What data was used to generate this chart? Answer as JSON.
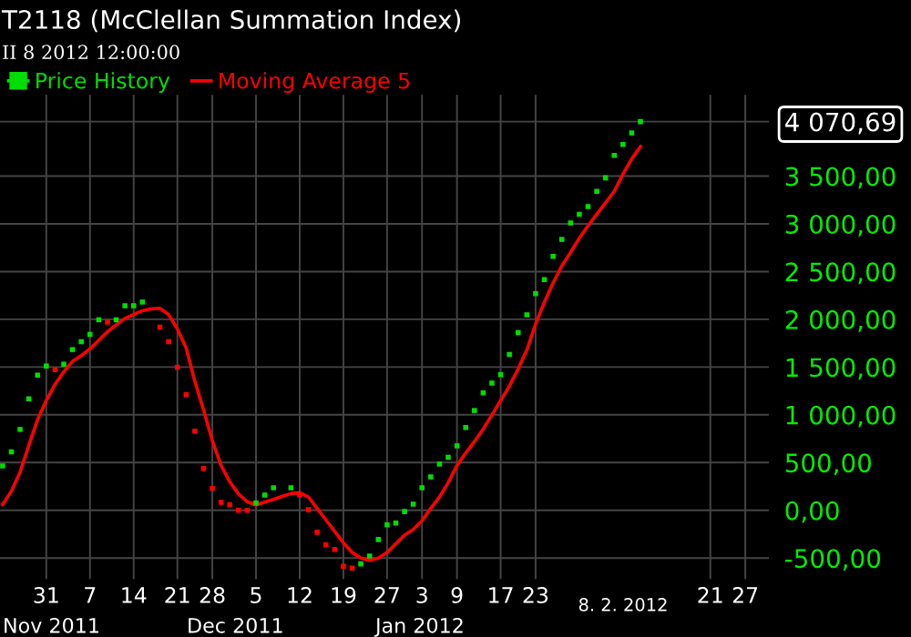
{
  "chart_data": {
    "type": "scatter",
    "title": "T2118 (McClellan Summation Index)",
    "subtitle": "II 8 2012 12:00:00",
    "annotations": [
      "Nov 2011",
      "Dec 2011",
      "Jan 2012",
      "8. 2. 2012"
    ],
    "categories": [
      null,
      null,
      null,
      null,
      null,
      "31",
      null,
      null,
      null,
      null,
      "7",
      null,
      null,
      null,
      null,
      "14",
      null,
      null,
      null,
      null,
      "21",
      null,
      null,
      null,
      "28",
      null,
      null,
      null,
      null,
      "5",
      null,
      null,
      null,
      null,
      "12",
      null,
      null,
      null,
      null,
      "19",
      null,
      null,
      null,
      null,
      "27",
      null,
      null,
      null,
      "3",
      null,
      null,
      null,
      "9",
      null,
      null,
      null,
      null,
      "17",
      null,
      null,
      null,
      "23",
      null,
      null,
      null,
      null,
      null,
      null,
      null,
      null,
      null,
      null,
      null,
      null,
      null,
      null,
      null,
      null,
      null,
      null,
      null,
      "21",
      null,
      null,
      null,
      "27",
      null,
      null
    ],
    "series": [
      {
        "name": "Price History",
        "color": "#00dd00",
        "marker": "square",
        "values": [
          465,
          612,
          847,
          1167,
          1415,
          1511,
          1473,
          1530,
          1683,
          1766,
          1842,
          1995,
          1970,
          1995,
          2142,
          2142,
          2181,
          null,
          1918,
          1766,
          1498,
          1211,
          828,
          439,
          229,
          83,
          57,
          0,
          0,
          77,
          159,
          235,
          null,
          235,
          159,
          6,
          -230,
          -363,
          -410,
          -587,
          -606,
          -561,
          -478,
          -306,
          -153,
          -134,
          -13,
          64,
          235,
          350,
          484,
          555,
          675,
          867,
          1045,
          1230,
          1332,
          1421,
          1632,
          1861,
          2047,
          2269,
          2416,
          2659,
          2837,
          3009,
          3099,
          3181,
          3340,
          3482,
          3717,
          3832,
          3952,
          4070.69,
          null,
          null,
          null,
          null,
          null,
          null,
          null,
          null,
          null,
          null,
          null,
          null,
          null,
          null
        ],
        "colors": [
          "#00dd00",
          "#00dd00",
          "#00dd00",
          "#00dd00",
          "#00dd00",
          "#00dd00",
          "#ff0000",
          "#00dd00",
          "#00dd00",
          "#00dd00",
          "#00dd00",
          "#00dd00",
          "#ff0000",
          "#00dd00",
          "#00dd00",
          "#00dd00",
          "#00dd00",
          "#ff0000",
          "#ff0000",
          "#ff0000",
          "#ff0000",
          "#ff0000",
          "#ff0000",
          "#ff0000",
          "#ff0000",
          "#ff0000",
          "#ff0000",
          "#ff0000",
          "#ff0000",
          "#00dd00",
          "#00dd00",
          "#00dd00",
          "#00dd00",
          "#00dd00",
          "#ff0000",
          "#ff0000",
          "#ff0000",
          "#ff0000",
          "#ff0000",
          "#ff0000",
          "#ff0000",
          "#00dd00",
          "#00dd00",
          "#00dd00",
          "#00dd00",
          "#00dd00",
          "#00dd00",
          "#00dd00",
          "#00dd00",
          "#00dd00",
          "#00dd00",
          "#00dd00",
          "#00dd00",
          "#00dd00",
          "#00dd00",
          "#00dd00",
          "#00dd00",
          "#00dd00",
          "#00dd00",
          "#00dd00",
          "#00dd00",
          "#00dd00",
          "#00dd00",
          "#00dd00",
          "#00dd00",
          "#00dd00",
          "#00dd00",
          "#00dd00",
          "#00dd00",
          "#00dd00",
          "#00dd00",
          "#00dd00",
          "#00dd00",
          "#00dd00",
          null,
          null,
          null,
          null,
          null,
          null,
          null,
          null,
          null,
          null,
          null,
          null,
          null,
          null
        ]
      },
      {
        "name": "Moving Average 5",
        "type": "line",
        "color": "#ff0000",
        "marker": "none",
        "line_style": "solid",
        "values": [
          60,
          200,
          400,
          680,
          950,
          1150,
          1320,
          1450,
          1560,
          1620,
          1690,
          1780,
          1870,
          1940,
          2010,
          2050,
          2090,
          2110,
          2115,
          2050,
          1900,
          1700,
          1350,
          1050,
          730,
          470,
          300,
          170,
          90,
          55,
          85,
          115,
          145,
          175,
          185,
          140,
          20,
          -100,
          -220,
          -340,
          -440,
          -500,
          -525,
          -500,
          -440,
          -350,
          -260,
          -200,
          -110,
          20,
          140,
          290,
          470,
          600,
          720,
          850,
          1000,
          1150,
          1300,
          1480,
          1680,
          1950,
          2180,
          2380,
          2560,
          2700,
          2850,
          2980,
          3100,
          3220,
          3340,
          3520,
          3680,
          3810,
          null,
          null,
          null,
          null,
          null,
          null,
          null,
          null,
          null,
          null,
          null,
          null,
          null,
          null
        ]
      }
    ],
    "ylim": [
      -720,
      4350
    ],
    "yticks": [
      {
        "value": -500,
        "label": "-500,00"
      },
      {
        "value": 0,
        "label": "0,00"
      },
      {
        "value": 500,
        "label": "500,00"
      },
      {
        "value": 1000,
        "label": "1 000,00"
      },
      {
        "value": 1500,
        "label": "1 500,00"
      },
      {
        "value": 2000,
        "label": "2 000,00"
      },
      {
        "value": 2500,
        "label": "2 500,00"
      },
      {
        "value": 3000,
        "label": "3 000,00"
      },
      {
        "value": 3500,
        "label": "3 500,00"
      },
      {
        "value": 4070.69,
        "label": "4 070,69"
      }
    ],
    "grid": true,
    "legend": "top left"
  }
}
